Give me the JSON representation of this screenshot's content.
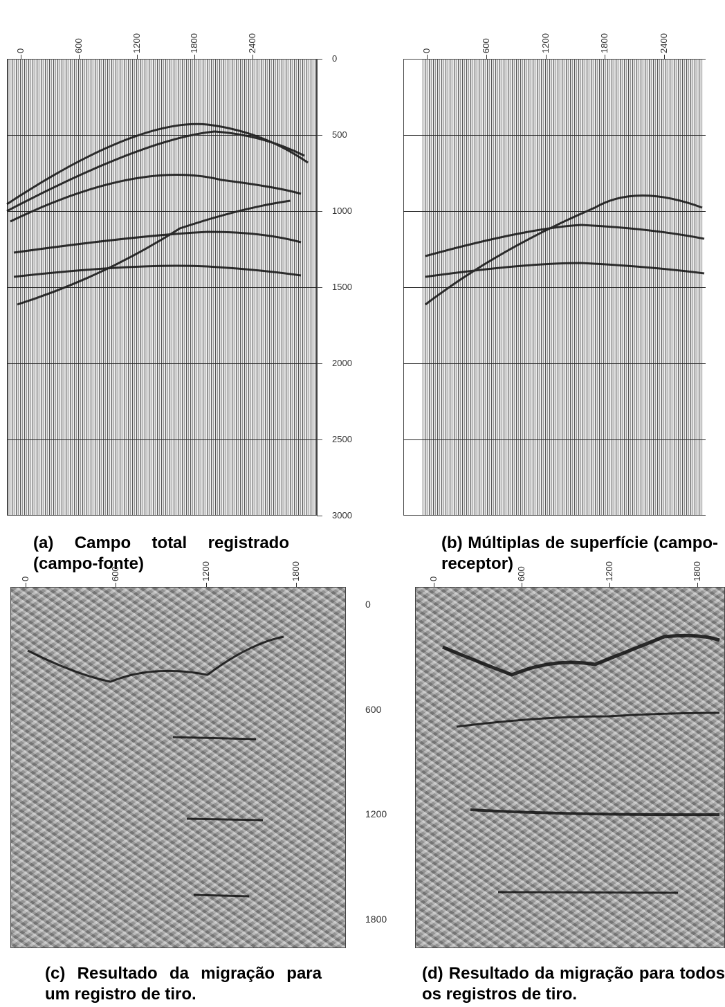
{
  "panels": [
    {
      "x_ticks": [
        0,
        600,
        1200,
        1800,
        2400
      ],
      "caption": "(a) Campo total registrado (campo-fonte)"
    },
    {
      "x_ticks": [
        0,
        600,
        1200,
        1800,
        2400
      ],
      "caption": "(b) Múltiplas de superfície (campo-receptor)"
    },
    {
      "x_ticks": [
        0,
        600,
        1200,
        1800
      ],
      "caption": "(c) Resultado da migração para um registro de tiro."
    },
    {
      "x_ticks": [
        0,
        600,
        1200,
        1800
      ],
      "caption": "(d) Resultado da migração para todos os registros de tiro."
    }
  ],
  "y_axis_top": {
    "ticks": [
      0,
      500,
      1000,
      1500,
      2000,
      2500,
      3000
    ]
  },
  "y_axis_bottom": {
    "ticks": [
      0,
      600,
      1200,
      1800
    ]
  }
}
